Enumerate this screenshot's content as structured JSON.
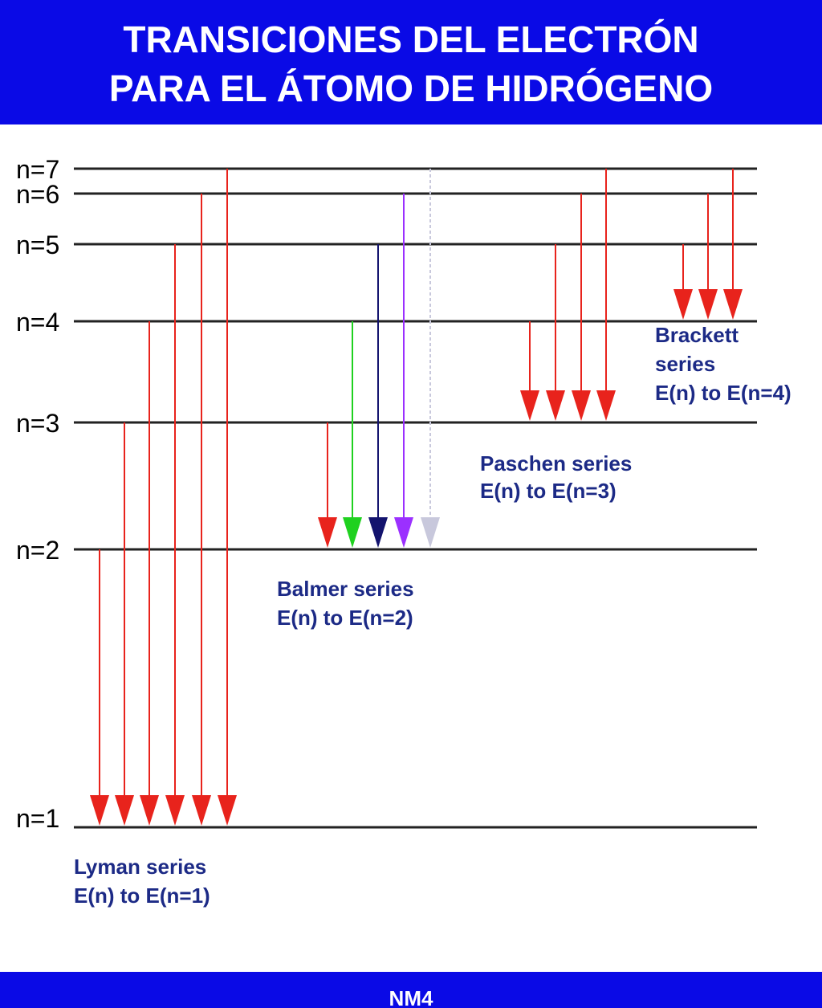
{
  "header": {
    "title": [
      "TRANSICIONES DEL ELECTRÓN",
      "PARA EL ÁTOMO DE HIDRÓGENO"
    ]
  },
  "levels": [
    "n=7",
    "n=6",
    "n=5",
    "n=4",
    "n=3",
    "n=2",
    "n=1"
  ],
  "series": [
    {
      "lines": [
        "Lyman series",
        "E(n) to E(n=1)"
      ]
    },
    {
      "lines": [
        "Balmer series",
        "E(n) to E(n=2)"
      ]
    },
    {
      "lines": [
        "Paschen series",
        "E(n) to E(n=3)"
      ]
    },
    {
      "lines": [
        "Brackett",
        "series",
        "E(n) to E(n=4)"
      ]
    }
  ],
  "footer": {
    "text": "NM4"
  }
}
